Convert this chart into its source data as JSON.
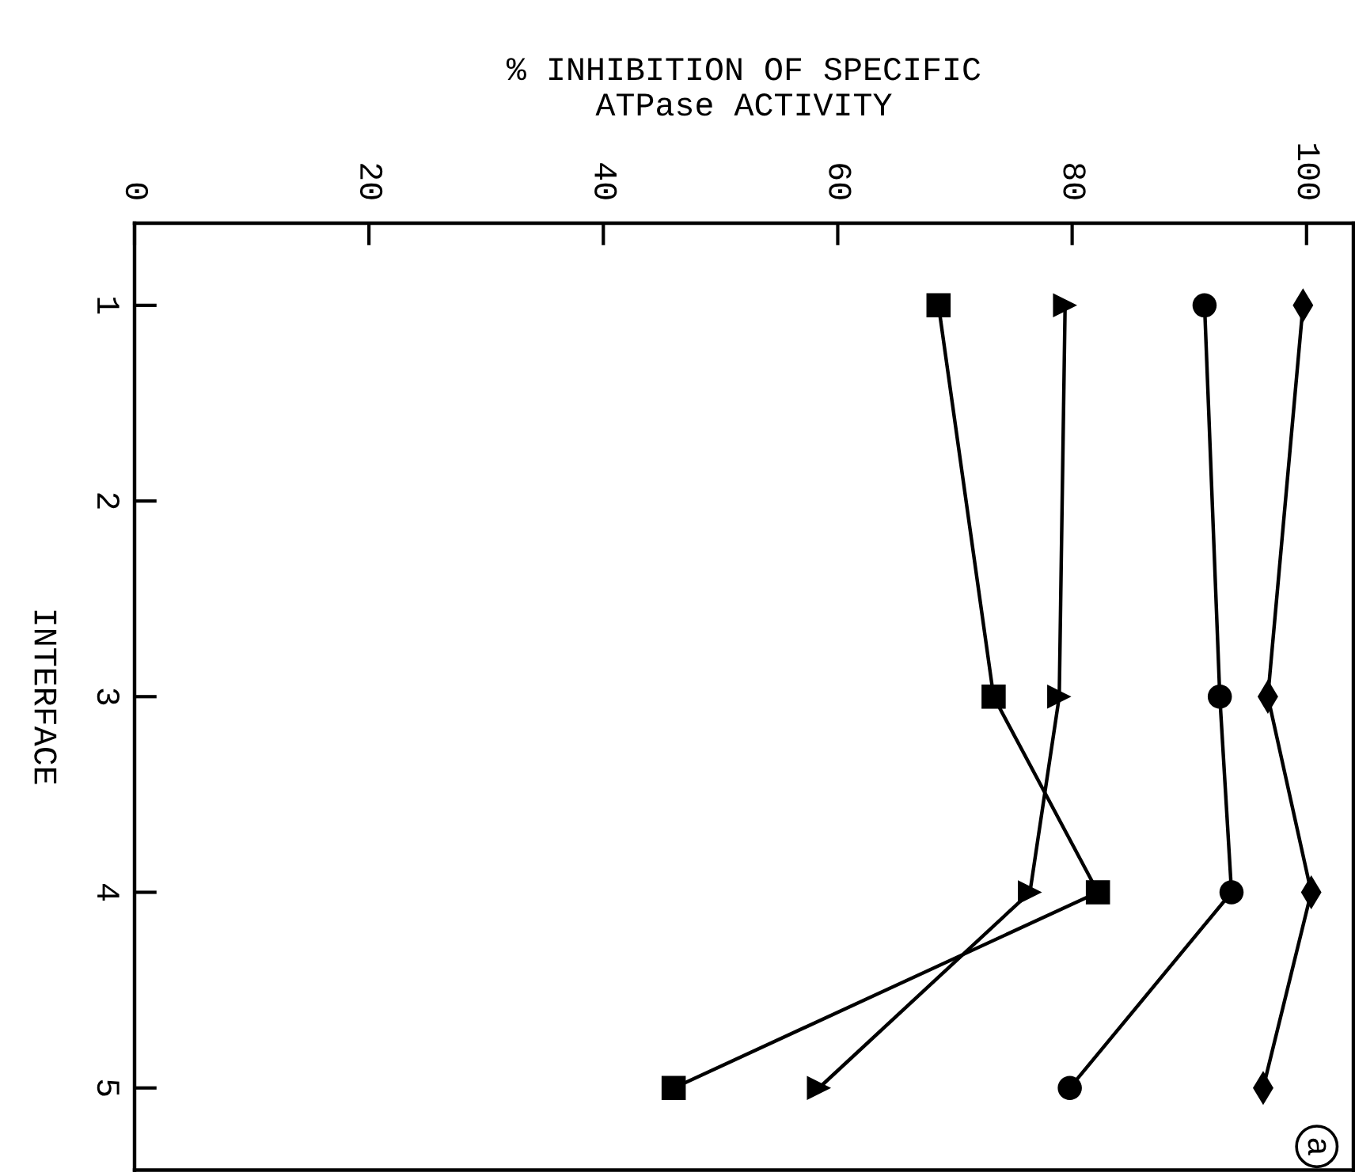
{
  "chart_data": {
    "type": "line",
    "orientation": "horizontal",
    "xlabel": "% INHIBITION OF SPECIFIC\nATPase ACTIVITY",
    "ylabel": "INTERFACE",
    "categories": [
      "1",
      "2",
      "3",
      "4",
      "5"
    ],
    "xlim": [
      0,
      104
    ],
    "xticks": [
      0,
      20,
      40,
      60,
      80,
      100
    ],
    "series": [
      {
        "color": "#000000",
        "marker": "square",
        "values": [
          68.6,
          null,
          73.3,
          82.2,
          46.0
        ]
      },
      {
        "color": "#000000",
        "marker": "triangle",
        "values": [
          79.4,
          null,
          78.9,
          76.4,
          58.4
        ]
      },
      {
        "color": "#000000",
        "marker": "circle",
        "values": [
          91.3,
          null,
          92.6,
          93.6,
          79.8
        ]
      },
      {
        "color": "#000000",
        "marker": "diamond",
        "values": [
          99.7,
          null,
          96.7,
          100.4,
          96.3
        ]
      }
    ],
    "annotations": [
      "a"
    ],
    "grid": false,
    "legend": false,
    "line_style": "solid"
  }
}
